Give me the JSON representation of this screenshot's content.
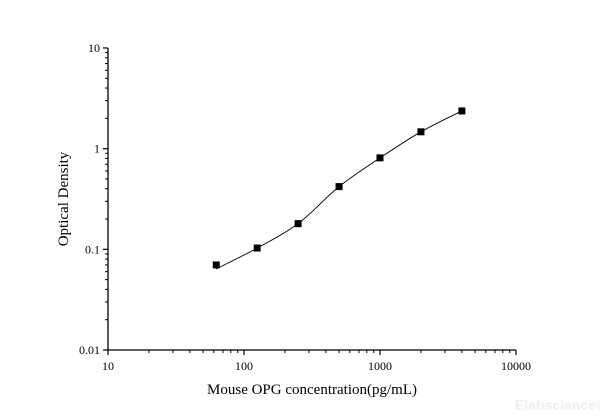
{
  "chart_data": {
    "type": "scatter",
    "xlabel": "Mouse OPG concentration(pg/mL)",
    "ylabel": "Optical Density",
    "xscale": "log",
    "yscale": "log",
    "xlim": [
      10,
      10000
    ],
    "ylim": [
      0.01,
      10
    ],
    "xticks": [
      "10",
      "100",
      "1000",
      "10000"
    ],
    "yticks": [
      "0.01",
      "0.1",
      "1",
      "10"
    ],
    "grid": false,
    "x": [
      62.5,
      125,
      250,
      500,
      1000,
      2000,
      4000
    ],
    "y": [
      0.07,
      0.103,
      0.18,
      0.42,
      0.81,
      1.47,
      2.37
    ],
    "fit_curve": true,
    "marker": "square",
    "color": "#000000"
  },
  "watermark": "Elabscience®"
}
